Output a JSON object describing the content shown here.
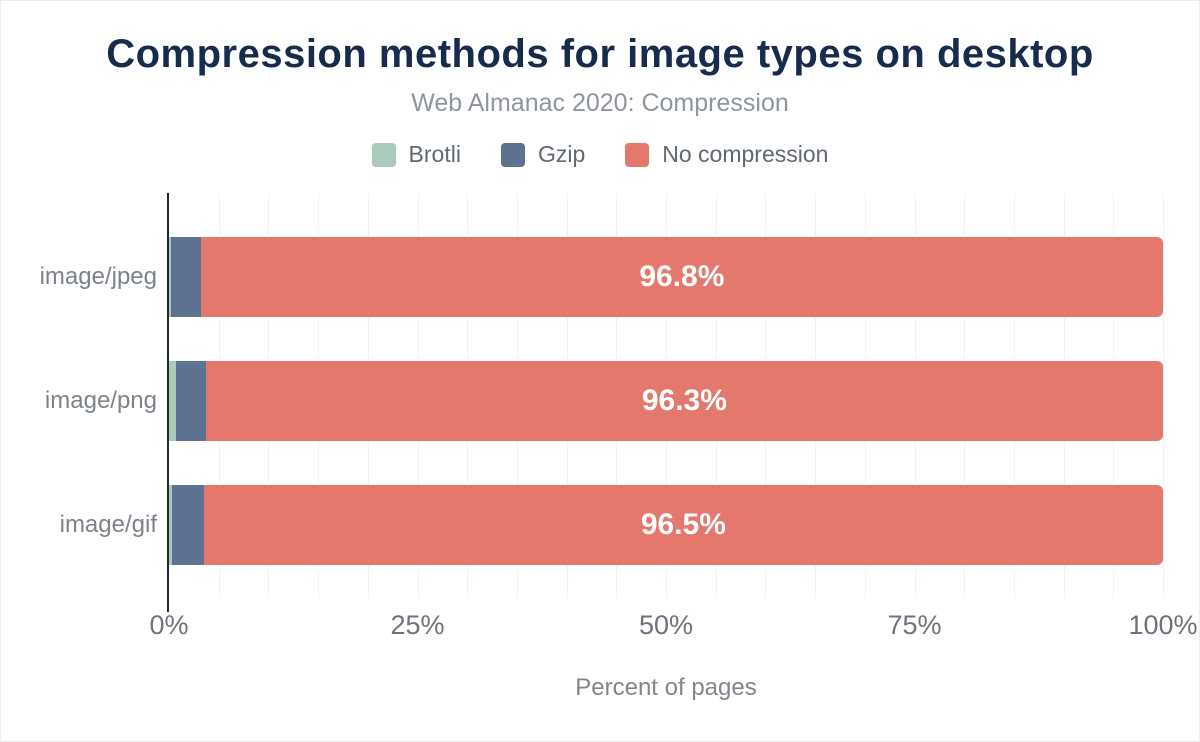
{
  "chart_data": {
    "type": "bar",
    "orientation": "horizontal-stacked",
    "title": "Compression methods for image types on desktop",
    "subtitle": "Web Almanac 2020: Compression",
    "xlabel": "Percent of pages",
    "categories": [
      "image/jpeg",
      "image/png",
      "image/gif"
    ],
    "series": [
      {
        "name": "Brotli",
        "color": "#a9cbb9",
        "values": [
          0.2,
          0.7,
          0.3
        ]
      },
      {
        "name": "Gzip",
        "color": "#5d7190",
        "values": [
          3.0,
          3.0,
          3.2
        ]
      },
      {
        "name": "No compression",
        "color": "#e4786d",
        "values": [
          96.8,
          96.3,
          96.5
        ]
      }
    ],
    "bar_labels": [
      "96.8%",
      "96.3%",
      "96.5%"
    ],
    "x_ticks": [
      "0%",
      "25%",
      "50%",
      "75%",
      "100%"
    ],
    "x_tick_values": [
      0,
      25,
      50,
      75,
      100
    ],
    "xlim": [
      0,
      100
    ],
    "grid": {
      "minor_step": 5,
      "color": "#f2f2f4",
      "vertical": true
    },
    "legend_position": "top"
  },
  "colors": {
    "title": "#172b4d",
    "subtitle": "#8f959c",
    "legend_text": "#606871",
    "category_labels": "#7d838a",
    "tick_labels": "#6d737b",
    "axis_title": "#82868c",
    "axis_line": "#26282b",
    "bar_value_label": "#ffffff",
    "background": "#ffffff"
  }
}
